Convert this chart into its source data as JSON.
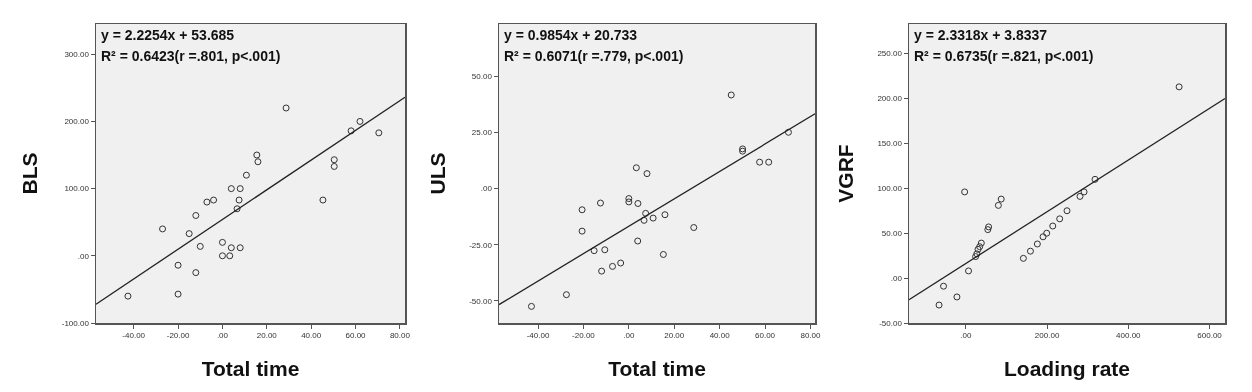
{
  "chart_data": [
    {
      "type": "scatter",
      "xlabel": "Total time",
      "ylabel": "BLS",
      "marker": "circle",
      "grid": false,
      "annotations": [
        "y = 2.2254x + 53.685",
        "R² = 0.6423(r =.801, p<.001)"
      ],
      "xlim": [
        -57,
        82.3
      ],
      "ylim": [
        -100,
        345
      ],
      "xticks": [
        {
          "value": -40,
          "label": "-40.00"
        },
        {
          "value": -20,
          "label": "-20.00"
        },
        {
          "value": 0,
          "label": ".00"
        },
        {
          "value": 20,
          "label": "20.00"
        },
        {
          "value": 40,
          "label": "40.00"
        },
        {
          "value": 60,
          "label": "60.00"
        },
        {
          "value": 80,
          "label": "80.00"
        }
      ],
      "yticks": [
        {
          "value": -100,
          "label": "-100.00"
        },
        {
          "value": 0,
          "label": ".00"
        },
        {
          "value": 100,
          "label": "100.00"
        },
        {
          "value": 200,
          "label": "200.00"
        },
        {
          "value": 300,
          "label": "300.00"
        }
      ],
      "series": [
        {
          "type": "scatter",
          "color": "#333333",
          "x": [
            -42.6,
            -27,
            -20,
            -20,
            -15,
            -12,
            -12,
            -10,
            -7,
            -4,
            0,
            0,
            3.3,
            4,
            4,
            8,
            8,
            7.5,
            6.6,
            10.8,
            15.5,
            16,
            28.7,
            45.3,
            50.4,
            50.4,
            58,
            62,
            70.5
          ],
          "values": [
            -60,
            40,
            -14,
            -57,
            33,
            60,
            -25,
            14,
            80,
            83,
            20,
            0,
            0,
            12,
            100,
            12,
            100,
            83,
            70,
            120,
            150,
            140,
            220,
            83,
            143,
            133,
            186,
            200,
            183
          ]
        },
        {
          "type": "line",
          "color": "#222222",
          "marker": "none",
          "x": [
            -57,
            82.3
          ],
          "values": [
            -72,
            236
          ]
        }
      ]
    },
    {
      "type": "scatter",
      "xlabel": "Total time",
      "ylabel": "ULS",
      "marker": "circle",
      "grid": false,
      "annotations": [
        "y = 0.9854x + 20.733",
        "R² = 0.6071(r =.779, p<.001)"
      ],
      "xlim": [
        -57.2,
        82
      ],
      "ylim": [
        -59.8,
        73.3
      ],
      "xticks": [
        {
          "value": -40,
          "label": "-40.00"
        },
        {
          "value": -20,
          "label": "-20.00"
        },
        {
          "value": 0,
          "label": ".00"
        },
        {
          "value": 20,
          "label": "20.00"
        },
        {
          "value": 40,
          "label": "40.00"
        },
        {
          "value": 60,
          "label": "60.00"
        },
        {
          "value": 80,
          "label": "80.00"
        }
      ],
      "yticks": [
        {
          "value": -50,
          "label": "-50.00"
        },
        {
          "value": -25,
          "label": "-25.00"
        },
        {
          "value": 0,
          "label": ".00"
        },
        {
          "value": 25,
          "label": "25.00"
        },
        {
          "value": 50,
          "label": "50.00"
        }
      ],
      "series": [
        {
          "type": "scatter",
          "color": "#333333",
          "x": [
            -42.9,
            -27.5,
            -20.6,
            -20.6,
            -15.3,
            -12.5,
            -12,
            -10.6,
            -7.2,
            -3.6,
            0,
            0,
            3.3,
            3.9,
            4,
            8,
            7.4,
            6.7,
            10.7,
            15.9,
            15.2,
            28.6,
            45.1,
            50.1,
            50.1,
            57.6,
            61.6,
            70.3
          ],
          "values": [
            -52.4,
            -47.2,
            -9.4,
            -18.9,
            -27.6,
            -6.4,
            -36.7,
            -27.2,
            -34.6,
            -33.1,
            -4.4,
            -5.9,
            9.3,
            -23.3,
            -6.6,
            6.7,
            -11,
            -14.1,
            -13.1,
            -11.6,
            -29.3,
            -17.3,
            41.7,
            17.7,
            16.7,
            11.8,
            11.8,
            25.1
          ]
        },
        {
          "type": "line",
          "color": "#222222",
          "marker": "none",
          "x": [
            -57.2,
            82
          ],
          "values": [
            -51.6,
            33.3
          ]
        }
      ]
    },
    {
      "type": "scatter",
      "xlabel": "Loading rate",
      "ylabel": "VGRF",
      "marker": "circle",
      "grid": false,
      "annotations": [
        "y = 2.3318x + 3.8337",
        "R² = 0.6735(r =.821, p<.001)"
      ],
      "xlim": [
        -140,
        638
      ],
      "ylim": [
        -50,
        283
      ],
      "xticks": [
        {
          "value": 0,
          "label": ".00"
        },
        {
          "value": 200,
          "label": "200.00"
        },
        {
          "value": 400,
          "label": "400.00"
        },
        {
          "value": 600,
          "label": "600.00"
        }
      ],
      "yticks": [
        {
          "value": -50,
          "label": "-50.00"
        },
        {
          "value": 0,
          "label": ".00"
        },
        {
          "value": 50,
          "label": "50.00"
        },
        {
          "value": 100,
          "label": "100.00"
        },
        {
          "value": 150,
          "label": "150.00"
        },
        {
          "value": 200,
          "label": "200.00"
        },
        {
          "value": 250,
          "label": "250.00"
        }
      ],
      "series": [
        {
          "type": "scatter",
          "color": "#333333",
          "x": [
            -66,
            -55,
            -22,
            -3,
            6.6,
            24,
            27,
            30,
            34,
            38,
            54,
            56,
            80,
            87,
            141.6,
            159,
            176,
            190,
            199,
            214,
            231,
            249,
            281,
            291,
            318,
            525
          ],
          "values": [
            -30,
            -9,
            -21,
            96,
            8,
            24,
            27,
            32,
            35,
            39,
            54,
            57,
            81,
            88,
            22,
            30,
            38,
            46,
            50,
            58,
            66,
            75,
            91,
            96,
            110,
            213
          ]
        },
        {
          "type": "line",
          "color": "#222222",
          "marker": "none",
          "x": [
            -140,
            638
          ],
          "values": [
            -24,
            200
          ]
        }
      ]
    }
  ]
}
